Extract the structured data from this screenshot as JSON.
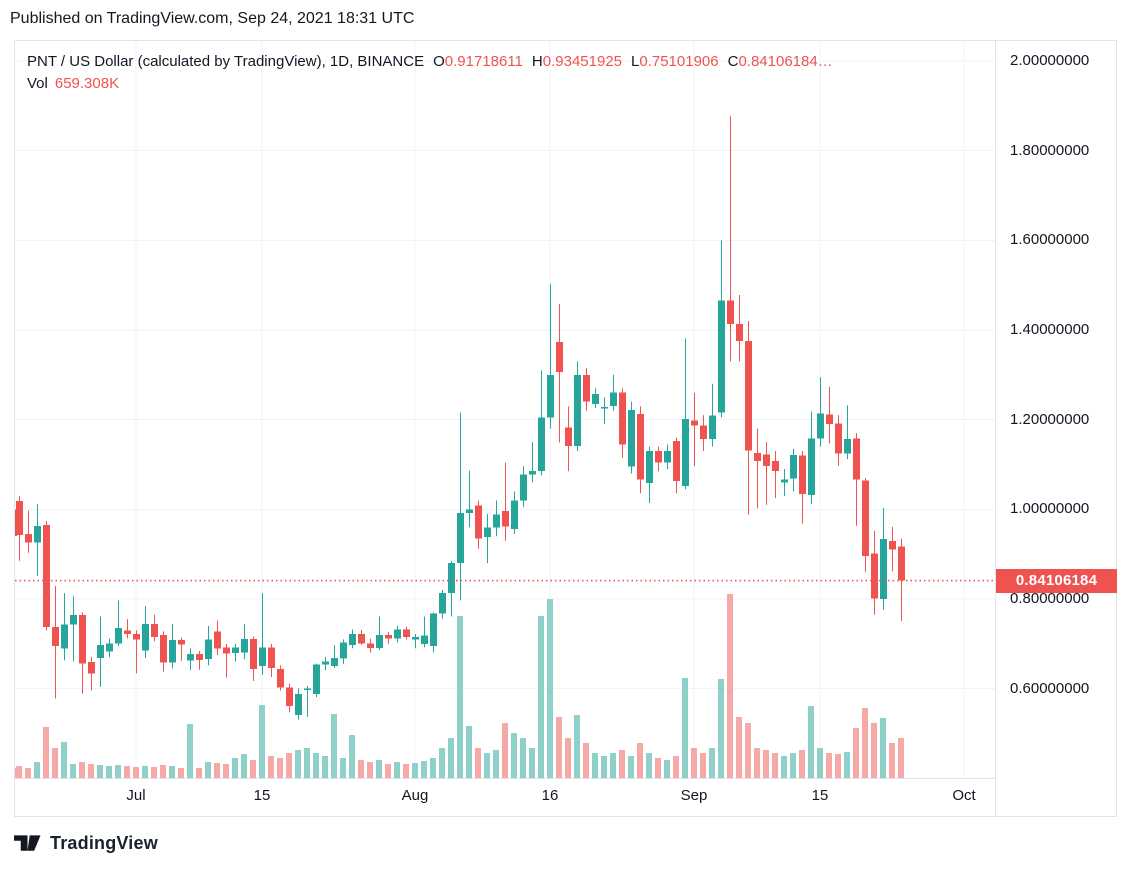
{
  "published_line": "Published on TradingView.com, Sep 24, 2021 18:31 UTC",
  "legend": {
    "title": "PNT / US Dollar (calculated by TradingView), 1D, BINANCE",
    "ohlc": [
      {
        "label": "O",
        "value": "0.91718611"
      },
      {
        "label": "H",
        "value": "0.93451925"
      },
      {
        "label": "L",
        "value": "0.75101906"
      },
      {
        "label": "C",
        "value": "0.84106184…"
      }
    ],
    "vol_label": "Vol",
    "vol_value": "659.308K"
  },
  "price_badge": "0.84106184",
  "footer": {
    "brand": "TradingView"
  },
  "colors": {
    "candle_up": "#26a69a",
    "candle_down": "#ef5350",
    "volume_up": "#8fd0ca",
    "volume_down": "#f5a8a6",
    "grid": "#f0f3fa",
    "border": "#e0e3eb",
    "text": "#131722",
    "value_red": "#ef5350",
    "badge_bg": "#ef5350"
  },
  "chart_data": {
    "type": "candlestick",
    "title": "PNT / US Dollar (calculated by TradingView), 1D, BINANCE",
    "interval": "1D",
    "exchange": "BINANCE",
    "last_price": 0.84106184,
    "last_ohlc": {
      "o": 0.91718611,
      "h": 0.93451925,
      "l": 0.75101906,
      "c": 0.84106184
    },
    "last_volume_k": 659.308,
    "volume_unit_thousands": true,
    "y_ticks": [
      {
        "price": 2.0,
        "label": "2.00000000"
      },
      {
        "price": 1.8,
        "label": "1.80000000"
      },
      {
        "price": 1.6,
        "label": "1.60000000"
      },
      {
        "price": 1.4,
        "label": "1.40000000"
      },
      {
        "price": 1.2,
        "label": "1.20000000"
      },
      {
        "price": 1.0,
        "label": "1.00000000"
      },
      {
        "price": 0.8,
        "label": "0.80000000"
      },
      {
        "price": 0.6,
        "label": "0.60000000"
      }
    ],
    "x_ticks": [
      {
        "day_index": 14,
        "label": "Jul"
      },
      {
        "day_index": 28,
        "label": "15"
      },
      {
        "day_index": 45,
        "label": "Aug"
      },
      {
        "day_index": 60,
        "label": "16"
      },
      {
        "day_index": 76,
        "label": "Sep"
      },
      {
        "day_index": 90,
        "label": "15"
      },
      {
        "day_index": 106,
        "label": "Oct"
      }
    ],
    "price_axis_visible_range": [
      0.4,
      2.04
    ],
    "candles": [
      [
        1.0,
        1.02,
        0.9,
        0.94,
        165
      ],
      [
        1.019,
        1.03,
        0.885,
        0.943,
        198
      ],
      [
        0.945,
        0.997,
        0.903,
        0.926,
        165
      ],
      [
        0.926,
        1.012,
        0.851,
        0.963,
        264
      ],
      [
        0.965,
        0.974,
        0.73,
        0.737,
        841
      ],
      [
        0.737,
        0.829,
        0.578,
        0.695,
        494
      ],
      [
        0.69,
        0.813,
        0.663,
        0.743,
        593
      ],
      [
        0.743,
        0.806,
        0.661,
        0.764,
        231
      ],
      [
        0.764,
        0.77,
        0.589,
        0.656,
        264
      ],
      [
        0.66,
        0.67,
        0.596,
        0.634,
        231
      ],
      [
        0.668,
        0.761,
        0.604,
        0.697,
        214
      ],
      [
        0.683,
        0.712,
        0.67,
        0.701,
        198
      ],
      [
        0.701,
        0.797,
        0.695,
        0.735,
        214
      ],
      [
        0.73,
        0.755,
        0.712,
        0.722,
        198
      ],
      [
        0.722,
        0.73,
        0.634,
        0.71,
        181
      ],
      [
        0.685,
        0.784,
        0.668,
        0.744,
        198
      ],
      [
        0.744,
        0.765,
        0.706,
        0.715,
        181
      ],
      [
        0.72,
        0.728,
        0.638,
        0.658,
        214
      ],
      [
        0.658,
        0.744,
        0.645,
        0.708,
        198
      ],
      [
        0.708,
        0.714,
        0.662,
        0.698,
        165
      ],
      [
        0.663,
        0.69,
        0.641,
        0.677,
        890
      ],
      [
        0.677,
        0.684,
        0.642,
        0.664,
        165
      ],
      [
        0.666,
        0.74,
        0.652,
        0.71,
        264
      ],
      [
        0.727,
        0.752,
        0.675,
        0.69,
        247
      ],
      [
        0.692,
        0.7,
        0.625,
        0.678,
        231
      ],
      [
        0.68,
        0.7,
        0.661,
        0.692,
        330
      ],
      [
        0.681,
        0.744,
        0.666,
        0.711,
        396
      ],
      [
        0.711,
        0.716,
        0.617,
        0.644,
        297
      ],
      [
        0.65,
        0.813,
        0.631,
        0.692,
        1203
      ],
      [
        0.692,
        0.7,
        0.626,
        0.646,
        363
      ],
      [
        0.644,
        0.652,
        0.596,
        0.603,
        330
      ],
      [
        0.603,
        0.611,
        0.547,
        0.561,
        412
      ],
      [
        0.541,
        0.601,
        0.531,
        0.588,
        462
      ],
      [
        0.597,
        0.606,
        0.537,
        0.6,
        494
      ],
      [
        0.588,
        0.656,
        0.581,
        0.654,
        412
      ],
      [
        0.654,
        0.671,
        0.641,
        0.661,
        363
      ],
      [
        0.651,
        0.697,
        0.646,
        0.668,
        1055
      ],
      [
        0.667,
        0.71,
        0.655,
        0.703,
        330
      ],
      [
        0.697,
        0.732,
        0.69,
        0.722,
        709
      ],
      [
        0.722,
        0.731,
        0.698,
        0.701,
        297
      ],
      [
        0.701,
        0.711,
        0.68,
        0.691,
        264
      ],
      [
        0.691,
        0.761,
        0.686,
        0.72,
        297
      ],
      [
        0.72,
        0.726,
        0.7,
        0.712,
        231
      ],
      [
        0.712,
        0.74,
        0.703,
        0.732,
        264
      ],
      [
        0.732,
        0.738,
        0.71,
        0.715,
        231
      ],
      [
        0.71,
        0.722,
        0.69,
        0.715,
        247
      ],
      [
        0.7,
        0.761,
        0.692,
        0.719,
        280
      ],
      [
        0.695,
        0.77,
        0.681,
        0.768,
        330
      ],
      [
        0.768,
        0.82,
        0.756,
        0.813,
        494
      ],
      [
        0.813,
        0.885,
        0.761,
        0.88,
        659
      ],
      [
        0.88,
        1.216,
        0.797,
        0.992,
        2670
      ],
      [
        0.992,
        1.086,
        0.96,
        1.0,
        857
      ],
      [
        1.009,
        1.02,
        0.912,
        0.935,
        494
      ],
      [
        0.938,
        0.99,
        0.88,
        0.96,
        412
      ],
      [
        0.96,
        1.02,
        0.94,
        0.989,
        462
      ],
      [
        0.996,
        1.104,
        0.93,
        0.962,
        907
      ],
      [
        0.956,
        1.04,
        0.945,
        1.02,
        742
      ],
      [
        1.02,
        1.096,
        1.005,
        1.078,
        659
      ],
      [
        1.078,
        1.15,
        1.06,
        1.086,
        494
      ],
      [
        1.086,
        1.31,
        1.076,
        1.205,
        2670
      ],
      [
        1.205,
        1.503,
        1.18,
        1.3,
        2950
      ],
      [
        1.373,
        1.458,
        1.149,
        1.306,
        1005
      ],
      [
        1.182,
        1.23,
        1.085,
        1.141,
        659
      ],
      [
        1.141,
        1.33,
        1.13,
        1.3,
        1038
      ],
      [
        1.3,
        1.315,
        1.22,
        1.24,
        577
      ],
      [
        1.235,
        1.27,
        1.226,
        1.257,
        412
      ],
      [
        1.226,
        1.25,
        1.19,
        1.228,
        363
      ],
      [
        1.231,
        1.3,
        1.22,
        1.261,
        412
      ],
      [
        1.261,
        1.27,
        1.115,
        1.145,
        462
      ],
      [
        1.095,
        1.24,
        1.08,
        1.222,
        363
      ],
      [
        1.213,
        1.23,
        1.036,
        1.066,
        577
      ],
      [
        1.059,
        1.14,
        1.014,
        1.13,
        412
      ],
      [
        1.13,
        1.14,
        1.085,
        1.104,
        330
      ],
      [
        1.104,
        1.145,
        1.09,
        1.13,
        297
      ],
      [
        1.152,
        1.16,
        1.036,
        1.063,
        363
      ],
      [
        1.052,
        1.381,
        1.045,
        1.201,
        1648
      ],
      [
        1.198,
        1.26,
        1.096,
        1.187,
        494
      ],
      [
        1.187,
        1.21,
        1.13,
        1.157,
        412
      ],
      [
        1.157,
        1.28,
        1.14,
        1.209,
        494
      ],
      [
        1.216,
        1.6,
        1.205,
        1.466,
        1632
      ],
      [
        1.466,
        1.877,
        1.33,
        1.413,
        3033
      ],
      [
        1.413,
        1.478,
        1.33,
        1.375,
        1005
      ],
      [
        1.375,
        1.42,
        0.988,
        1.131,
        907
      ],
      [
        1.126,
        1.18,
        1.002,
        1.108,
        494
      ],
      [
        1.122,
        1.15,
        1.01,
        1.097,
        462
      ],
      [
        1.108,
        1.13,
        1.025,
        1.086,
        412
      ],
      [
        1.06,
        1.09,
        1.03,
        1.066,
        363
      ],
      [
        1.069,
        1.135,
        1.04,
        1.121,
        412
      ],
      [
        1.12,
        1.13,
        0.968,
        1.034,
        462
      ],
      [
        1.032,
        1.218,
        1.012,
        1.158,
        1187
      ],
      [
        1.158,
        1.295,
        1.14,
        1.214,
        494
      ],
      [
        1.212,
        1.273,
        1.147,
        1.19,
        412
      ],
      [
        1.192,
        1.21,
        1.097,
        1.124,
        396
      ],
      [
        1.124,
        1.232,
        1.112,
        1.157,
        429
      ],
      [
        1.158,
        1.17,
        0.963,
        1.066,
        824
      ],
      [
        1.064,
        1.07,
        0.86,
        0.896,
        1154
      ],
      [
        0.902,
        0.952,
        0.765,
        0.801,
        907
      ],
      [
        0.8,
        1.003,
        0.776,
        0.934,
        989
      ],
      [
        0.929,
        0.961,
        0.862,
        0.91,
        577
      ],
      [
        0.91718611,
        0.93451925,
        0.75101906,
        0.84106184,
        659.308
      ]
    ]
  }
}
